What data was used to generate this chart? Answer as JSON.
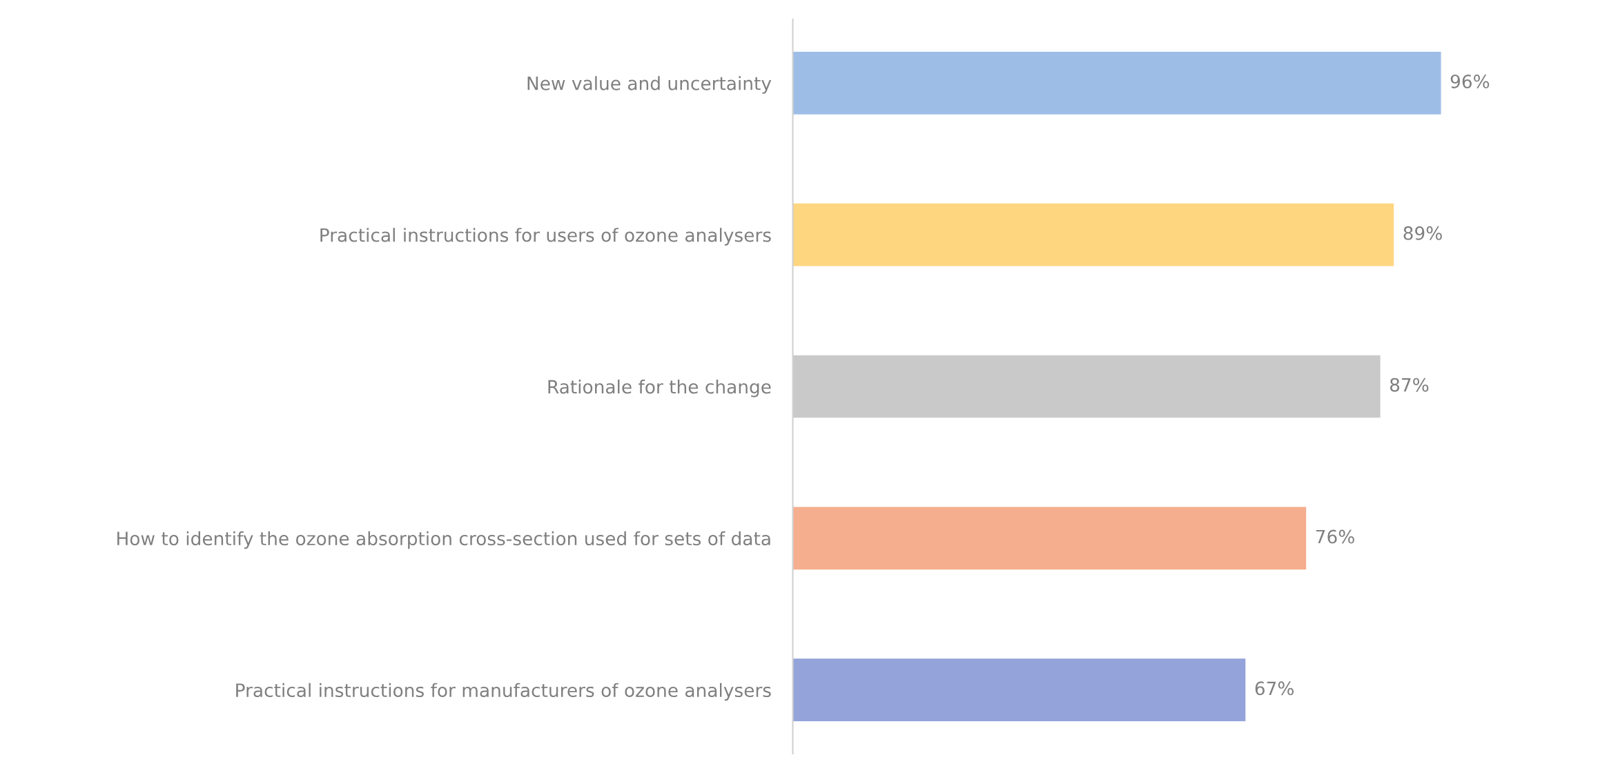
{
  "chart_data": {
    "type": "bar",
    "orientation": "horizontal",
    "tick_labels": "y",
    "grid": false,
    "categories": [
      "New value and uncertainty",
      "Practical instructions for users of ozone analysers",
      "Rationale for the change",
      "How to identify the ozone absorption cross-section used for sets of data",
      "Practical instructions for manufacturers of ozone analysers"
    ],
    "values": [
      96,
      89,
      87,
      76,
      67
    ],
    "value_labels": [
      "96%",
      "89%",
      "87%",
      "76%",
      "67%"
    ],
    "colors": [
      "#9dbde6",
      "#ffd680",
      "#c9c9c9",
      "#f5ae8e",
      "#94a3da"
    ]
  }
}
